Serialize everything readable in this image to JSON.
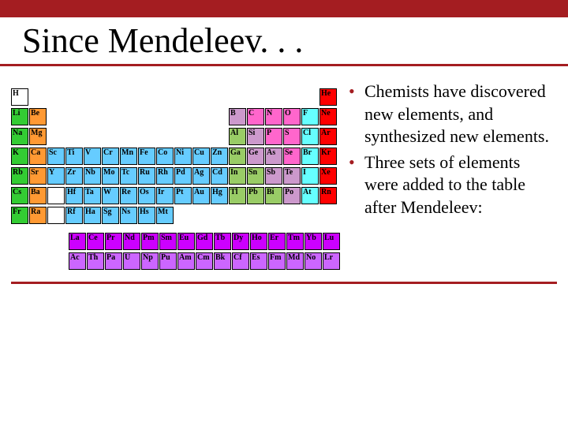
{
  "slide": {
    "title": "Since Mendeleev. . .",
    "topbar_color": "#a41d21",
    "rule_color": "#a41d21",
    "bullet_color": "#a41d21",
    "text_color": "#000000"
  },
  "bullets": [
    "Chemists have discovered new elements, and synthesized new elements.",
    "Three sets of elements were added to the table after Mendeleev:"
  ],
  "colors": {
    "group1": "#33cc33",
    "group2": "#ff9933",
    "hydrogen": "#ffffff",
    "transition": "#66ccff",
    "posttrans": "#99cc66",
    "metalloid": "#cc99cc",
    "nonmetal": "#ff66cc",
    "halogen": "#66ffff",
    "noble": "#ff0000",
    "lanthanide": "#cc00ff",
    "actinide": "#cc66ff",
    "border": "#000000"
  },
  "ptable": {
    "main": [
      [
        {
          "s": "H",
          "c": "hydrogen"
        },
        null,
        null,
        null,
        null,
        null,
        null,
        null,
        null,
        null,
        null,
        null,
        null,
        null,
        null,
        null,
        null,
        {
          "s": "He",
          "c": "noble"
        }
      ],
      [
        {
          "s": "Li",
          "c": "group1"
        },
        {
          "s": "Be",
          "c": "group2"
        },
        null,
        null,
        null,
        null,
        null,
        null,
        null,
        null,
        null,
        null,
        {
          "s": "B",
          "c": "metalloid"
        },
        {
          "s": "C",
          "c": "nonmetal"
        },
        {
          "s": "N",
          "c": "nonmetal"
        },
        {
          "s": "O",
          "c": "nonmetal"
        },
        {
          "s": "F",
          "c": "halogen"
        },
        {
          "s": "Ne",
          "c": "noble"
        }
      ],
      [
        {
          "s": "Na",
          "c": "group1"
        },
        {
          "s": "Mg",
          "c": "group2"
        },
        null,
        null,
        null,
        null,
        null,
        null,
        null,
        null,
        null,
        null,
        {
          "s": "Al",
          "c": "posttrans"
        },
        {
          "s": "Si",
          "c": "metalloid"
        },
        {
          "s": "P",
          "c": "nonmetal"
        },
        {
          "s": "S",
          "c": "nonmetal"
        },
        {
          "s": "Cl",
          "c": "halogen"
        },
        {
          "s": "Ar",
          "c": "noble"
        }
      ],
      [
        {
          "s": "K",
          "c": "group1"
        },
        {
          "s": "Ca",
          "c": "group2"
        },
        {
          "s": "Sc",
          "c": "transition"
        },
        {
          "s": "Ti",
          "c": "transition"
        },
        {
          "s": "V",
          "c": "transition"
        },
        {
          "s": "Cr",
          "c": "transition"
        },
        {
          "s": "Mn",
          "c": "transition"
        },
        {
          "s": "Fe",
          "c": "transition"
        },
        {
          "s": "Co",
          "c": "transition"
        },
        {
          "s": "Ni",
          "c": "transition"
        },
        {
          "s": "Cu",
          "c": "transition"
        },
        {
          "s": "Zn",
          "c": "transition"
        },
        {
          "s": "Ga",
          "c": "posttrans"
        },
        {
          "s": "Ge",
          "c": "metalloid"
        },
        {
          "s": "As",
          "c": "metalloid"
        },
        {
          "s": "Se",
          "c": "nonmetal"
        },
        {
          "s": "Br",
          "c": "halogen"
        },
        {
          "s": "Kr",
          "c": "noble"
        }
      ],
      [
        {
          "s": "Rb",
          "c": "group1"
        },
        {
          "s": "Sr",
          "c": "group2"
        },
        {
          "s": "Y",
          "c": "transition"
        },
        {
          "s": "Zr",
          "c": "transition"
        },
        {
          "s": "Nb",
          "c": "transition"
        },
        {
          "s": "Mo",
          "c": "transition"
        },
        {
          "s": "Tc",
          "c": "transition"
        },
        {
          "s": "Ru",
          "c": "transition"
        },
        {
          "s": "Rh",
          "c": "transition"
        },
        {
          "s": "Pd",
          "c": "transition"
        },
        {
          "s": "Ag",
          "c": "transition"
        },
        {
          "s": "Cd",
          "c": "transition"
        },
        {
          "s": "In",
          "c": "posttrans"
        },
        {
          "s": "Sn",
          "c": "posttrans"
        },
        {
          "s": "Sb",
          "c": "metalloid"
        },
        {
          "s": "Te",
          "c": "metalloid"
        },
        {
          "s": "I",
          "c": "halogen"
        },
        {
          "s": "Xe",
          "c": "noble"
        }
      ],
      [
        {
          "s": "Cs",
          "c": "group1"
        },
        {
          "s": "Ba",
          "c": "group2"
        },
        {
          "s": "",
          "c": "hydrogen"
        },
        {
          "s": "Hf",
          "c": "transition"
        },
        {
          "s": "Ta",
          "c": "transition"
        },
        {
          "s": "W",
          "c": "transition"
        },
        {
          "s": "Re",
          "c": "transition"
        },
        {
          "s": "Os",
          "c": "transition"
        },
        {
          "s": "Ir",
          "c": "transition"
        },
        {
          "s": "Pt",
          "c": "transition"
        },
        {
          "s": "Au",
          "c": "transition"
        },
        {
          "s": "Hg",
          "c": "transition"
        },
        {
          "s": "Tl",
          "c": "posttrans"
        },
        {
          "s": "Pb",
          "c": "posttrans"
        },
        {
          "s": "Bi",
          "c": "posttrans"
        },
        {
          "s": "Po",
          "c": "metalloid"
        },
        {
          "s": "At",
          "c": "halogen"
        },
        {
          "s": "Rn",
          "c": "noble"
        }
      ],
      [
        {
          "s": "Fr",
          "c": "group1"
        },
        {
          "s": "Ra",
          "c": "group2"
        },
        {
          "s": "",
          "c": "hydrogen"
        },
        {
          "s": "Rf",
          "c": "transition"
        },
        {
          "s": "Ha",
          "c": "transition"
        },
        {
          "s": "Sg",
          "c": "transition"
        },
        {
          "s": "Ns",
          "c": "transition"
        },
        {
          "s": "Hs",
          "c": "transition"
        },
        {
          "s": "Mt",
          "c": "transition"
        },
        null,
        null,
        null,
        null,
        null,
        null,
        null,
        null,
        null
      ]
    ],
    "fblock": [
      [
        {
          "s": "La",
          "c": "lanthanide"
        },
        {
          "s": "Ce",
          "c": "lanthanide"
        },
        {
          "s": "Pr",
          "c": "lanthanide"
        },
        {
          "s": "Nd",
          "c": "lanthanide"
        },
        {
          "s": "Pm",
          "c": "lanthanide"
        },
        {
          "s": "Sm",
          "c": "lanthanide"
        },
        {
          "s": "Eu",
          "c": "lanthanide"
        },
        {
          "s": "Gd",
          "c": "lanthanide"
        },
        {
          "s": "Tb",
          "c": "lanthanide"
        },
        {
          "s": "Dy",
          "c": "lanthanide"
        },
        {
          "s": "Ho",
          "c": "lanthanide"
        },
        {
          "s": "Er",
          "c": "lanthanide"
        },
        {
          "s": "Tm",
          "c": "lanthanide"
        },
        {
          "s": "Yb",
          "c": "lanthanide"
        },
        {
          "s": "Lu",
          "c": "lanthanide"
        }
      ],
      [
        {
          "s": "Ac",
          "c": "actinide"
        },
        {
          "s": "Th",
          "c": "actinide"
        },
        {
          "s": "Pa",
          "c": "actinide"
        },
        {
          "s": "U",
          "c": "actinide"
        },
        {
          "s": "Np",
          "c": "actinide"
        },
        {
          "s": "Pu",
          "c": "actinide"
        },
        {
          "s": "Am",
          "c": "actinide"
        },
        {
          "s": "Cm",
          "c": "actinide"
        },
        {
          "s": "Bk",
          "c": "actinide"
        },
        {
          "s": "Cf",
          "c": "actinide"
        },
        {
          "s": "Es",
          "c": "actinide"
        },
        {
          "s": "Fm",
          "c": "actinide"
        },
        {
          "s": "Md",
          "c": "actinide"
        },
        {
          "s": "No",
          "c": "actinide"
        },
        {
          "s": "Lr",
          "c": "actinide"
        }
      ]
    ]
  }
}
